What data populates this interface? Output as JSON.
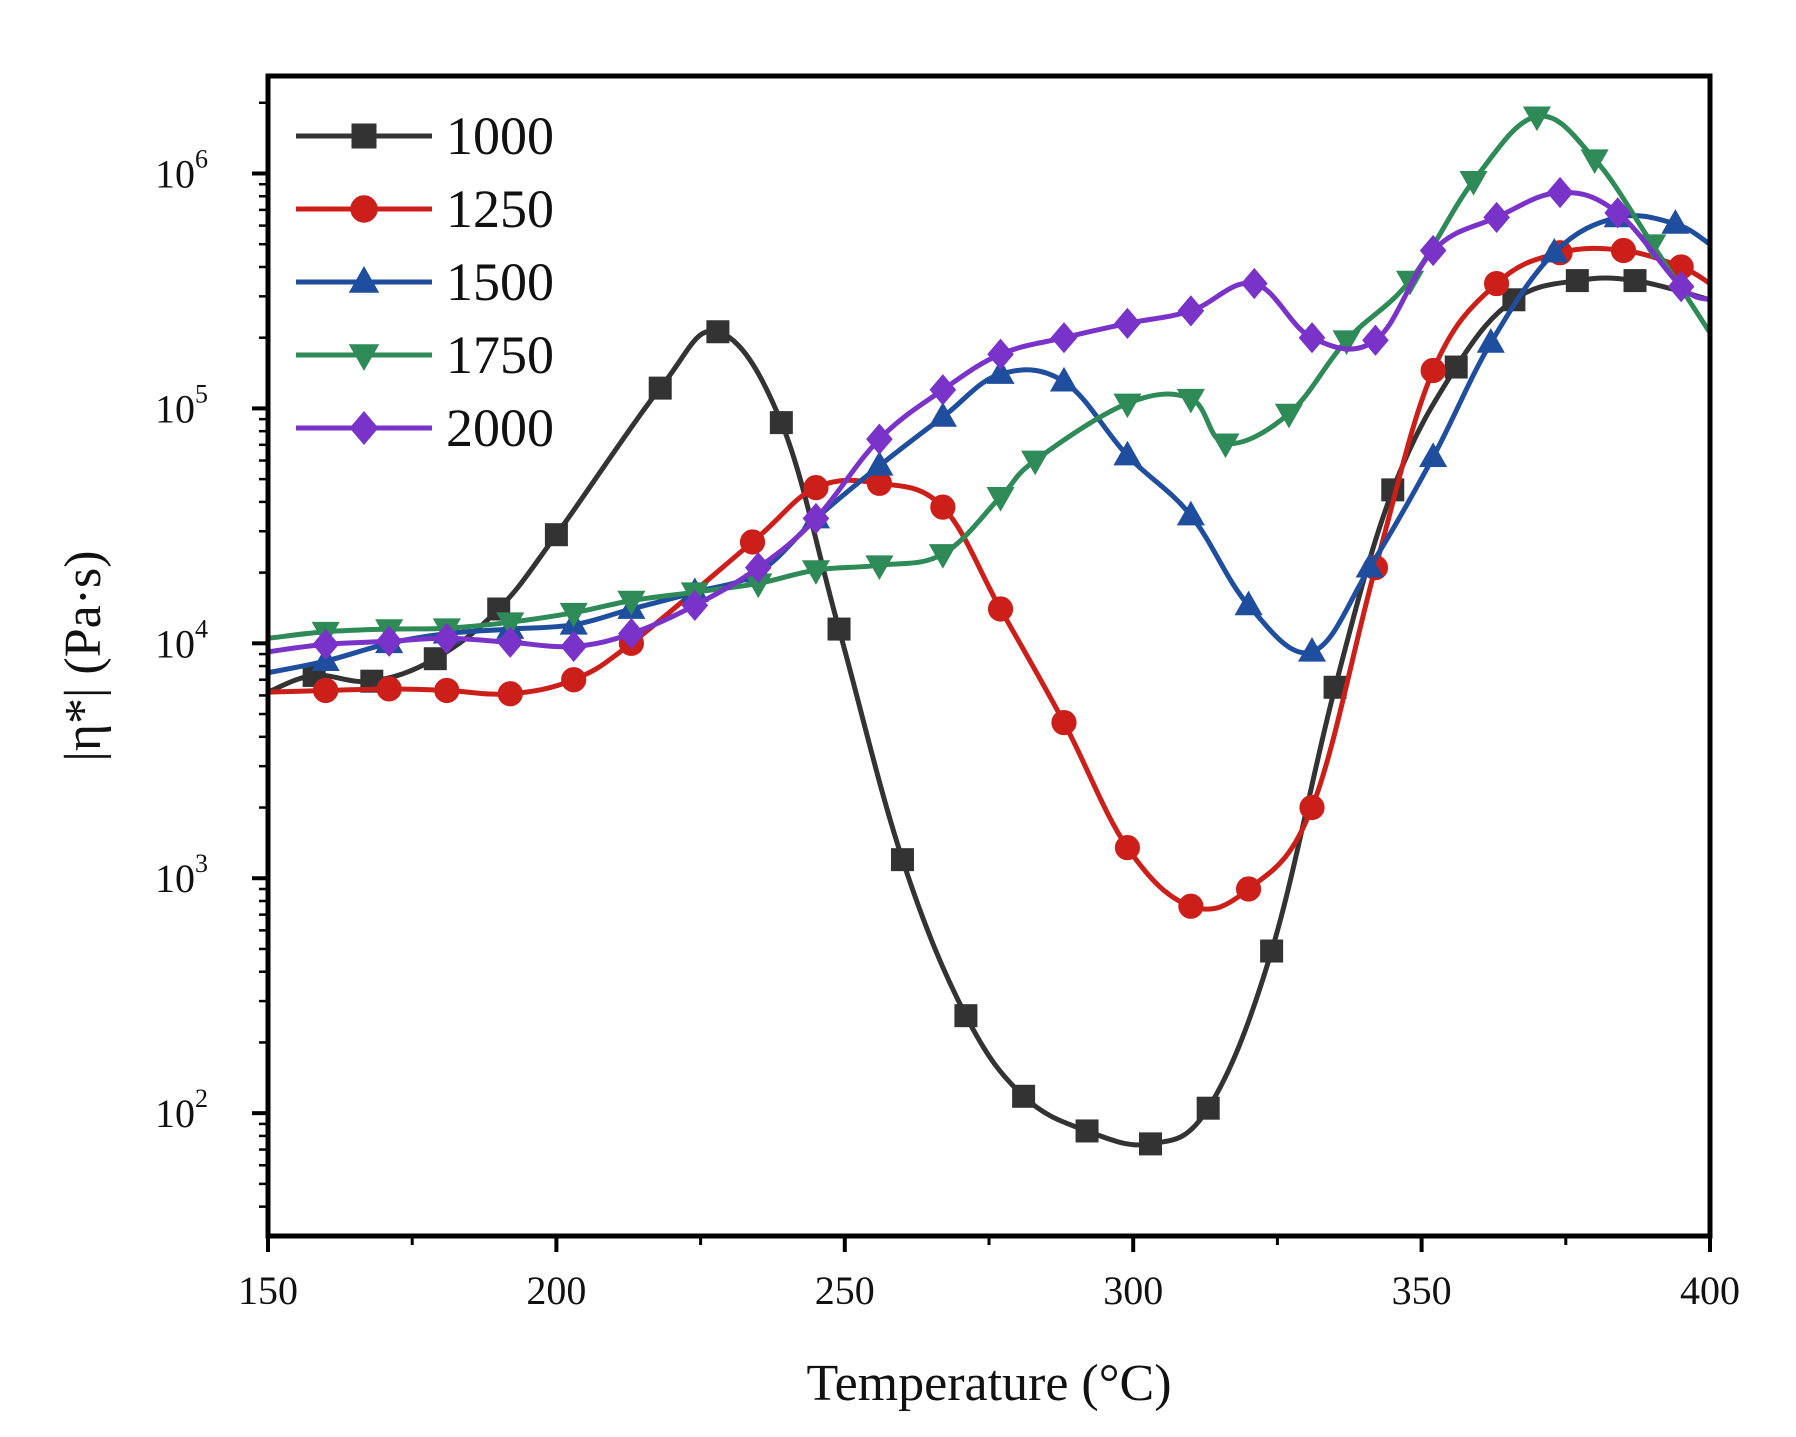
{
  "chart_data": {
    "type": "line",
    "title": "",
    "xlabel": "Temperature (°C)",
    "ylabel": "|η*| (Pa·s)",
    "xlim": [
      150,
      400
    ],
    "ylim": [
      30,
      2600000
    ],
    "yscale": "log",
    "grid": false,
    "legend_position": "top-left",
    "x_ticks": [
      "150",
      "200",
      "250",
      "300",
      "350",
      "400"
    ],
    "x_tick_values": [
      150,
      200,
      250,
      300,
      350,
      400
    ],
    "y_ticks": [
      {
        "base": "10",
        "exp": "2",
        "value": 100
      },
      {
        "base": "10",
        "exp": "3",
        "value": 1000
      },
      {
        "base": "10",
        "exp": "4",
        "value": 10000
      },
      {
        "base": "10",
        "exp": "5",
        "value": 100000
      },
      {
        "base": "10",
        "exp": "6",
        "value": 1000000
      }
    ],
    "series": [
      {
        "name": "1000",
        "color": "#333333",
        "marker": "square",
        "x": [
          150,
          158,
          168,
          179,
          190,
          200,
          218,
          228,
          239,
          249,
          260,
          271,
          281,
          292,
          303,
          313,
          324,
          335,
          345,
          356,
          366,
          377,
          387,
          400
        ],
        "y": [
          6200,
          7300,
          6900,
          8600,
          14000,
          29000,
          122000,
          212000,
          87000,
          11500,
          1200,
          260,
          118,
          84,
          74,
          105,
          490,
          6500,
          45000,
          150000,
          290000,
          350000,
          350000,
          290000
        ]
      },
      {
        "name": "1250",
        "color": "#cc1f1a",
        "marker": "circle",
        "x": [
          150,
          160,
          171,
          181,
          192,
          203,
          213,
          234,
          245,
          256,
          267,
          277,
          288,
          299,
          310,
          320,
          331,
          342,
          352,
          363,
          374,
          385,
          395,
          400
        ],
        "y": [
          6200,
          6300,
          6400,
          6300,
          6100,
          7000,
          10000,
          27000,
          46000,
          48000,
          38000,
          14000,
          4600,
          1350,
          760,
          900,
          2000,
          21000,
          145000,
          340000,
          460000,
          470000,
          400000,
          340000
        ]
      },
      {
        "name": "1500",
        "color": "#1f4e9e",
        "marker": "triangle-up",
        "x": [
          150,
          160,
          171,
          181,
          192,
          203,
          213,
          224,
          235,
          245,
          256,
          267,
          277,
          288,
          299,
          310,
          320,
          331,
          341,
          352,
          362,
          373,
          384,
          394,
          400
        ],
        "y": [
          7500,
          8400,
          10000,
          11000,
          11500,
          12000,
          14000,
          16500,
          20000,
          34000,
          57000,
          92000,
          140000,
          130000,
          63000,
          35000,
          14500,
          9200,
          21000,
          62000,
          190000,
          460000,
          650000,
          610000,
          500000
        ]
      },
      {
        "name": "1750",
        "color": "#2e8a57",
        "marker": "triangle-down",
        "x": [
          150,
          160,
          171,
          181,
          192,
          203,
          213,
          224,
          235,
          245,
          256,
          267,
          277,
          283,
          299,
          310,
          316,
          327,
          337,
          348,
          359,
          370,
          380,
          390,
          400
        ],
        "y": [
          10500,
          11200,
          11500,
          11600,
          12300,
          13500,
          15200,
          16500,
          18000,
          20500,
          21500,
          24000,
          42000,
          60000,
          105000,
          110000,
          71000,
          95000,
          195000,
          350000,
          930000,
          1750000,
          1150000,
          500000,
          210000
        ]
      },
      {
        "name": "2000",
        "color": "#7a33c9",
        "marker": "diamond",
        "x": [
          150,
          160,
          171,
          181,
          192,
          203,
          213,
          224,
          235,
          245,
          256,
          267,
          277,
          288,
          299,
          310,
          321,
          331,
          342,
          352,
          363,
          374,
          384,
          395,
          400
        ],
        "y": [
          9200,
          9900,
          10200,
          10500,
          10100,
          9700,
          11000,
          14500,
          21000,
          34000,
          74000,
          120000,
          170000,
          200000,
          230000,
          260000,
          340000,
          200000,
          195000,
          470000,
          650000,
          830000,
          680000,
          330000,
          290000
        ]
      }
    ]
  }
}
